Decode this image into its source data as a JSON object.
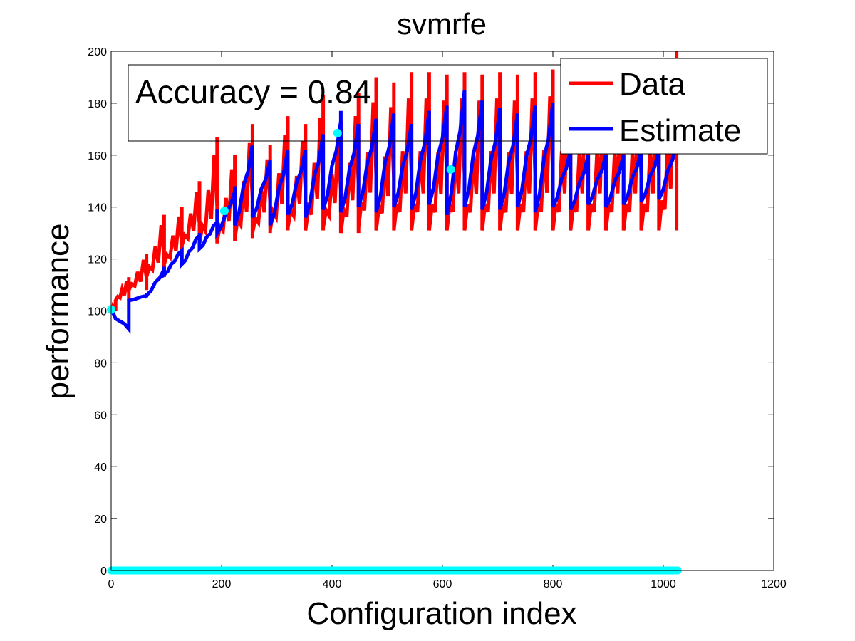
{
  "chart_data": {
    "type": "line",
    "title": "svmrfe",
    "xlabel": "Configuration index",
    "ylabel": "performance",
    "xlim": [
      0,
      1200
    ],
    "ylim": [
      0,
      200
    ],
    "xticks": [
      0,
      200,
      400,
      600,
      800,
      1000,
      1200
    ],
    "yticks": [
      0,
      20,
      40,
      60,
      80,
      100,
      120,
      140,
      160,
      180,
      200
    ],
    "grid": false,
    "legend_position": "top-right",
    "annotation": "Accuracy = 0.84",
    "series": [
      {
        "name": "Data",
        "color": "#ff0000",
        "groups": [
          {
            "x0": 0,
            "x1": 8,
            "base": 100,
            "peak": 103,
            "period": 1
          },
          {
            "x0": 8,
            "x1": 32,
            "base": 104,
            "peak": 113,
            "period": 4
          },
          {
            "x0": 32,
            "x1": 64,
            "base": 108,
            "peak": 122,
            "period": 5
          },
          {
            "x0": 64,
            "x1": 96,
            "base": 113,
            "peak": 137,
            "period": 5
          },
          {
            "x0": 96,
            "x1": 128,
            "base": 118,
            "peak": 140,
            "period": 5
          },
          {
            "x0": 128,
            "x1": 160,
            "base": 125,
            "peak": 150,
            "period": 5
          },
          {
            "x0": 160,
            "x1": 192,
            "base": 126,
            "peak": 167,
            "period": 5
          },
          {
            "x0": 192,
            "x1": 224,
            "base": 127,
            "peak": 160,
            "period": 5
          },
          {
            "x0": 224,
            "x1": 256,
            "base": 128,
            "peak": 172,
            "period": 5
          },
          {
            "x0": 256,
            "x1": 288,
            "base": 130,
            "peak": 164,
            "period": 5
          },
          {
            "x0": 288,
            "x1": 320,
            "base": 131,
            "peak": 175,
            "period": 5
          },
          {
            "x0": 320,
            "x1": 352,
            "base": 132,
            "peak": 172,
            "period": 5
          },
          {
            "x0": 352,
            "x1": 384,
            "base": 131,
            "peak": 183,
            "period": 5
          },
          {
            "x0": 384,
            "x1": 416,
            "base": 132,
            "peak": 173,
            "period": 5
          },
          {
            "x0": 416,
            "x1": 448,
            "base": 130,
            "peak": 184,
            "period": 5
          },
          {
            "x0": 448,
            "x1": 480,
            "base": 132,
            "peak": 190,
            "period": 5
          },
          {
            "x0": 480,
            "x1": 512,
            "base": 131,
            "peak": 188,
            "period": 5
          },
          {
            "x0": 512,
            "x1": 544,
            "base": 131,
            "peak": 192,
            "period": 5
          },
          {
            "x0": 544,
            "x1": 576,
            "base": 131,
            "peak": 192,
            "period": 5
          },
          {
            "x0": 576,
            "x1": 608,
            "base": 131,
            "peak": 191,
            "period": 5
          },
          {
            "x0": 608,
            "x1": 640,
            "base": 131,
            "peak": 192,
            "period": 5
          },
          {
            "x0": 640,
            "x1": 672,
            "base": 131,
            "peak": 191,
            "period": 5
          },
          {
            "x0": 672,
            "x1": 704,
            "base": 131,
            "peak": 192,
            "period": 5
          },
          {
            "x0": 704,
            "x1": 736,
            "base": 131,
            "peak": 191,
            "period": 5
          },
          {
            "x0": 736,
            "x1": 768,
            "base": 131,
            "peak": 192,
            "period": 5
          },
          {
            "x0": 768,
            "x1": 800,
            "base": 131,
            "peak": 193,
            "period": 5
          },
          {
            "x0": 800,
            "x1": 832,
            "base": 131,
            "peak": 192,
            "period": 5
          },
          {
            "x0": 832,
            "x1": 864,
            "base": 131,
            "peak": 192,
            "period": 5
          },
          {
            "x0": 864,
            "x1": 896,
            "base": 131,
            "peak": 192,
            "period": 5
          },
          {
            "x0": 896,
            "x1": 928,
            "base": 131,
            "peak": 192,
            "period": 5
          },
          {
            "x0": 928,
            "x1": 960,
            "base": 131,
            "peak": 192,
            "period": 5
          },
          {
            "x0": 960,
            "x1": 992,
            "base": 131,
            "peak": 192,
            "period": 5
          },
          {
            "x0": 992,
            "x1": 1024,
            "base": 131,
            "peak": 200,
            "period": 5
          }
        ]
      },
      {
        "name": "Estimate",
        "color": "#0000ff",
        "groups": [
          {
            "x0": 0,
            "x1": 32,
            "start": 101,
            "end": 93,
            "peak": 101,
            "period": 32
          },
          {
            "x0": 32,
            "x1": 64,
            "start": 104,
            "end": 106,
            "peak": 107,
            "period": 10
          },
          {
            "x0": 64,
            "x1": 96,
            "start": 106,
            "end": 116,
            "peak": 117,
            "period": 8
          },
          {
            "x0": 96,
            "x1": 128,
            "start": 114,
            "end": 124,
            "peak": 123,
            "period": 6
          },
          {
            "x0": 128,
            "x1": 160,
            "start": 118,
            "end": 130,
            "peak": 130,
            "period": 6
          },
          {
            "x0": 160,
            "x1": 192,
            "start": 124,
            "end": 135,
            "peak": 139,
            "period": 6
          },
          {
            "x0": 192,
            "x1": 224,
            "start": 130,
            "end": 146,
            "peak": 148,
            "period": 8
          },
          {
            "x0": 224,
            "x1": 256,
            "start": 133,
            "end": 164,
            "peak": 164,
            "period": 8
          },
          {
            "x0": 256,
            "x1": 288,
            "start": 136,
            "end": 158,
            "peak": 158,
            "period": 8
          },
          {
            "x0": 288,
            "x1": 320,
            "start": 133,
            "end": 162,
            "peak": 162,
            "period": 8
          },
          {
            "x0": 320,
            "x1": 352,
            "start": 137,
            "end": 162,
            "peak": 162,
            "period": 8
          },
          {
            "x0": 352,
            "x1": 384,
            "start": 136,
            "end": 168,
            "peak": 168,
            "period": 8
          },
          {
            "x0": 384,
            "x1": 416,
            "start": 139,
            "end": 173,
            "peak": 177,
            "period": 8
          },
          {
            "x0": 416,
            "x1": 448,
            "start": 138,
            "end": 172,
            "peak": 172,
            "period": 8
          },
          {
            "x0": 448,
            "x1": 480,
            "start": 140,
            "end": 174,
            "peak": 174,
            "period": 8
          },
          {
            "x0": 480,
            "x1": 512,
            "start": 138,
            "end": 176,
            "peak": 176,
            "period": 8
          },
          {
            "x0": 512,
            "x1": 544,
            "start": 140,
            "end": 172,
            "peak": 172,
            "period": 8
          },
          {
            "x0": 544,
            "x1": 576,
            "start": 139,
            "end": 177,
            "peak": 177,
            "period": 8
          },
          {
            "x0": 576,
            "x1": 608,
            "start": 141,
            "end": 179,
            "peak": 179,
            "period": 8
          },
          {
            "x0": 608,
            "x1": 640,
            "start": 137,
            "end": 185,
            "peak": 185,
            "period": 8
          },
          {
            "x0": 640,
            "x1": 672,
            "start": 140,
            "end": 181,
            "peak": 181,
            "period": 8
          },
          {
            "x0": 672,
            "x1": 704,
            "start": 139,
            "end": 178,
            "peak": 178,
            "period": 8
          },
          {
            "x0": 704,
            "x1": 736,
            "start": 139,
            "end": 176,
            "peak": 176,
            "period": 8
          },
          {
            "x0": 736,
            "x1": 768,
            "start": 140,
            "end": 179,
            "peak": 179,
            "period": 8
          },
          {
            "x0": 768,
            "x1": 800,
            "start": 138,
            "end": 180,
            "peak": 180,
            "period": 8
          },
          {
            "x0": 800,
            "x1": 832,
            "start": 140,
            "end": 162,
            "peak": 162,
            "period": 8
          },
          {
            "x0": 832,
            "x1": 864,
            "start": 139,
            "end": 160,
            "peak": 160,
            "period": 8
          },
          {
            "x0": 864,
            "x1": 896,
            "start": 141,
            "end": 160,
            "peak": 160,
            "period": 8
          },
          {
            "x0": 896,
            "x1": 928,
            "start": 140,
            "end": 160,
            "peak": 160,
            "period": 8
          },
          {
            "x0": 928,
            "x1": 960,
            "start": 141,
            "end": 162,
            "peak": 162,
            "period": 8
          },
          {
            "x0": 960,
            "x1": 992,
            "start": 142,
            "end": 162,
            "peak": 162,
            "period": 8
          },
          {
            "x0": 992,
            "x1": 1024,
            "start": 143,
            "end": 165,
            "peak": 165,
            "period": 8
          }
        ]
      },
      {
        "name": "",
        "color": "#00ffff",
        "type": "scatter",
        "points": [
          {
            "x": 0,
            "y": 100.5
          },
          {
            "x": 205,
            "y": 138.5
          },
          {
            "x": 410,
            "y": 168.5
          },
          {
            "x": 615,
            "y": 154.5
          }
        ],
        "baseline_points": {
          "x_start": 0,
          "x_end": 1026,
          "y": 0
        }
      }
    ]
  }
}
